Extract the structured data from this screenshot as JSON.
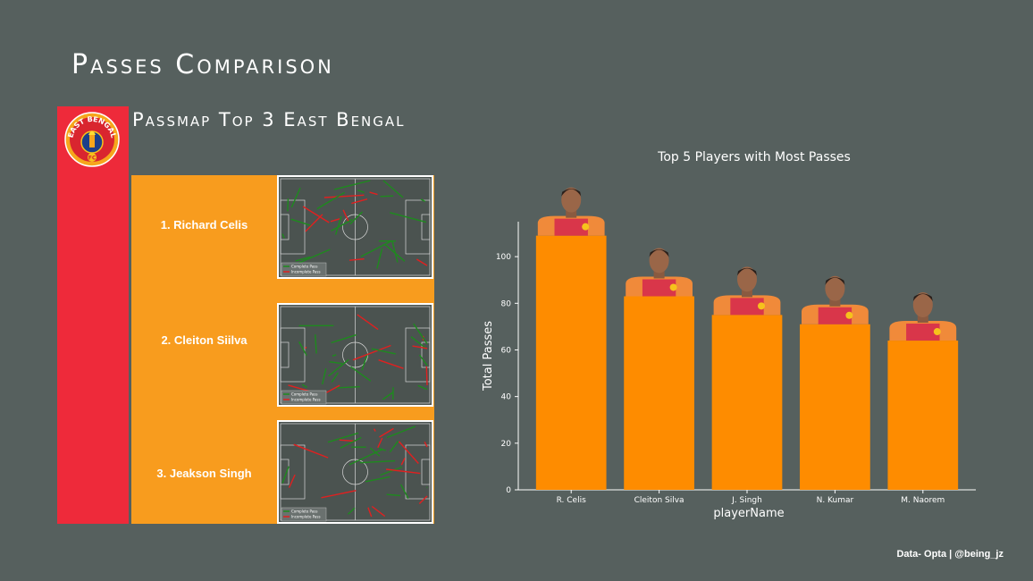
{
  "page": {
    "title": "Passes Comparison",
    "subtitle": "Passmap Top 3 East Bengal",
    "credit": "Data- Opta | @being_jz"
  },
  "logo": {
    "lettering": "EAST BENGAL FC"
  },
  "colors": {
    "background": "#56605e",
    "team_red": "#ee2a3a",
    "panel_orange": "#f89c1e",
    "bar_orange": "#fe8c00",
    "pitch": "#4b5350",
    "complete_pass": "#1e8a1e",
    "incomplete_pass": "#e02020"
  },
  "passmaps": [
    {
      "label": "1. Richard Celis"
    },
    {
      "label": "2. Cleiton Siilva"
    },
    {
      "label": "3. Jeakson Singh"
    }
  ],
  "passmap_legend": {
    "complete": "Complete Pass",
    "incomplete": "Incomplete Pass"
  },
  "chart_data": {
    "type": "bar",
    "title": "Top 5 Players with Most Passes",
    "xlabel": "playerName",
    "ylabel": "Total Passes",
    "categories": [
      "R. Celis",
      "Cleiton Silva",
      "J. Singh",
      "N. Kumar",
      "M. Naorem"
    ],
    "values": [
      109,
      83,
      75,
      71,
      64
    ],
    "ylim": [
      0,
      115
    ],
    "yticks": [
      0,
      20,
      40,
      60,
      80,
      100
    ],
    "grid": false,
    "player_images": true
  }
}
